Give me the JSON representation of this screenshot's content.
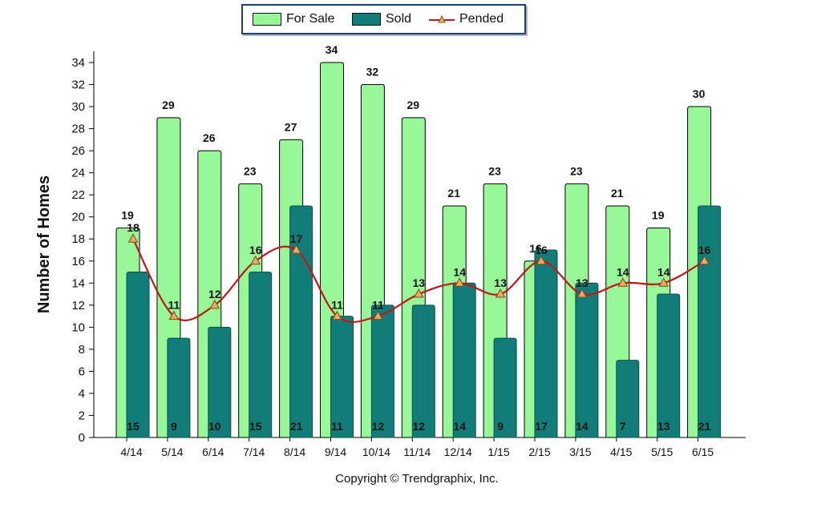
{
  "chart_data": {
    "type": "bar",
    "categories": [
      "4/14",
      "5/14",
      "6/14",
      "7/14",
      "8/14",
      "9/14",
      "10/14",
      "11/14",
      "12/14",
      "1/15",
      "2/15",
      "3/15",
      "4/15",
      "5/15",
      "6/15"
    ],
    "series": [
      {
        "name": "For Sale",
        "kind": "bar",
        "color": "#98f898",
        "values": [
          19,
          29,
          26,
          23,
          27,
          34,
          32,
          29,
          21,
          23,
          16,
          23,
          21,
          19,
          30
        ]
      },
      {
        "name": "Sold",
        "kind": "bar",
        "color": "#127d78",
        "values": [
          15,
          9,
          10,
          15,
          21,
          11,
          12,
          12,
          14,
          9,
          17,
          14,
          7,
          13,
          21
        ]
      },
      {
        "name": "Pended",
        "kind": "line",
        "color": "#c01818",
        "marker": "triangle",
        "marker_color": "#f0a860",
        "values": [
          18,
          11,
          12,
          16,
          17,
          11,
          11,
          13,
          14,
          13,
          16,
          13,
          14,
          14,
          16
        ]
      }
    ],
    "ylabel": "Number of Homes",
    "xlabel": "",
    "ylim": [
      0,
      34
    ],
    "yticks": [
      0,
      2,
      4,
      6,
      8,
      10,
      12,
      14,
      16,
      18,
      20,
      22,
      24,
      26,
      28,
      30,
      32,
      34
    ],
    "grid": false,
    "legend_position": "top"
  },
  "legend": {
    "items": [
      {
        "label": "For Sale",
        "color": "#98f898"
      },
      {
        "label": "Sold",
        "color": "#127d78"
      },
      {
        "label": "Pended",
        "color": "#c01818"
      }
    ]
  },
  "footer": {
    "copyright": "Copyright © Trendgraphix, Inc."
  }
}
